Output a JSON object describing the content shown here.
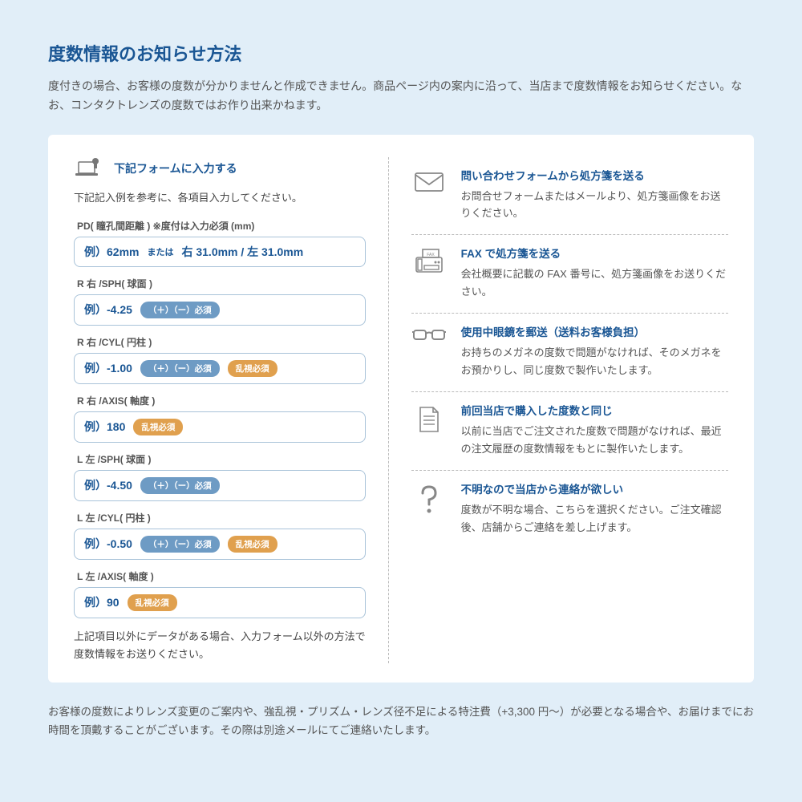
{
  "header": {
    "title": "度数情報のお知らせ方法",
    "desc": "度付きの場合、お客様の度数が分かりませんと作成できません。商品ページ内の案内に沿って、当店まで度数情報をお知らせください。なお、コンタクトレンズの度数ではお作り出来かねます。"
  },
  "form": {
    "title": "下記フォームに入力する",
    "subtitle": "下記記入例を参考に、各項目入力してください。",
    "note": "上記項目以外にデータがある場合、入力フォーム以外の方法で度数情報をお送りください。",
    "fields": [
      {
        "label": "PD( 瞳孔間距離 ) ※度付は入力必須 (mm)",
        "example": "例）62mm",
        "example2": "または",
        "example3": "右 31.0mm / 左 31.0mm",
        "badges": []
      },
      {
        "label": "R 右 /SPH( 球面 )",
        "example": "例）-4.25",
        "badges": [
          {
            "text": "（＋）（ー）必須",
            "color": "blue"
          }
        ]
      },
      {
        "label": "R 右 /CYL( 円柱 )",
        "example": "例）-1.00",
        "badges": [
          {
            "text": "（＋）（ー）必須",
            "color": "blue"
          },
          {
            "text": "乱視必須",
            "color": "orange"
          }
        ]
      },
      {
        "label": "R 右 /AXIS( 軸度 )",
        "example": "例）180",
        "badges": [
          {
            "text": "乱視必須",
            "color": "orange"
          }
        ]
      },
      {
        "label": "L 左 /SPH( 球面 )",
        "example": "例）-4.50",
        "badges": [
          {
            "text": "（＋）（ー）必須",
            "color": "blue"
          }
        ]
      },
      {
        "label": "L 左 /CYL( 円柱 )",
        "example": "例）-0.50",
        "badges": [
          {
            "text": "（＋）（ー）必須",
            "color": "blue"
          },
          {
            "text": "乱視必須",
            "color": "orange"
          }
        ]
      },
      {
        "label": "L 左 /AXIS( 軸度 )",
        "example": "例）90",
        "badges": [
          {
            "text": "乱視必須",
            "color": "orange"
          }
        ]
      }
    ]
  },
  "methods": [
    {
      "icon": "mail",
      "title": "問い合わせフォームから処方箋を送る",
      "desc": "お問合せフォームまたはメールより、処方箋画像をお送りください。"
    },
    {
      "icon": "fax",
      "title": "FAX で処方箋を送る",
      "desc": "会社概要に記載の FAX 番号に、処方箋画像をお送りください。"
    },
    {
      "icon": "glasses",
      "title": "使用中眼鏡を郵送（送料お客様負担）",
      "desc": "お持ちのメガネの度数で問題がなければ、そのメガネをお預かりし、同じ度数で製作いたします。"
    },
    {
      "icon": "document",
      "title": "前回当店で購入した度数と同じ",
      "desc": "以前に当店でご注文された度数で問題がなければ、最近の注文履歴の度数情報をもとに製作いたします。"
    },
    {
      "icon": "question",
      "title": "不明なので当店から連絡が欲しい",
      "desc": "度数が不明な場合、こちらを選択ください。ご注文確認後、店舗からご連絡を差し上げます。"
    }
  ],
  "footer": "お客様の度数によりレンズ変更のご案内や、強乱視・プリズム・レンズ径不足による特注費（+3,300 円〜）が必要となる場合や、お届けまでにお時間を頂戴することがございます。その際は別途メールにてご連絡いたします。",
  "colors": {
    "primary": "#1a5694",
    "badge_blue": "#6e9bc4",
    "badge_orange": "#e0a04e",
    "border": "#a9c3d9",
    "bg": "#e1eef8",
    "icon": "#888"
  }
}
